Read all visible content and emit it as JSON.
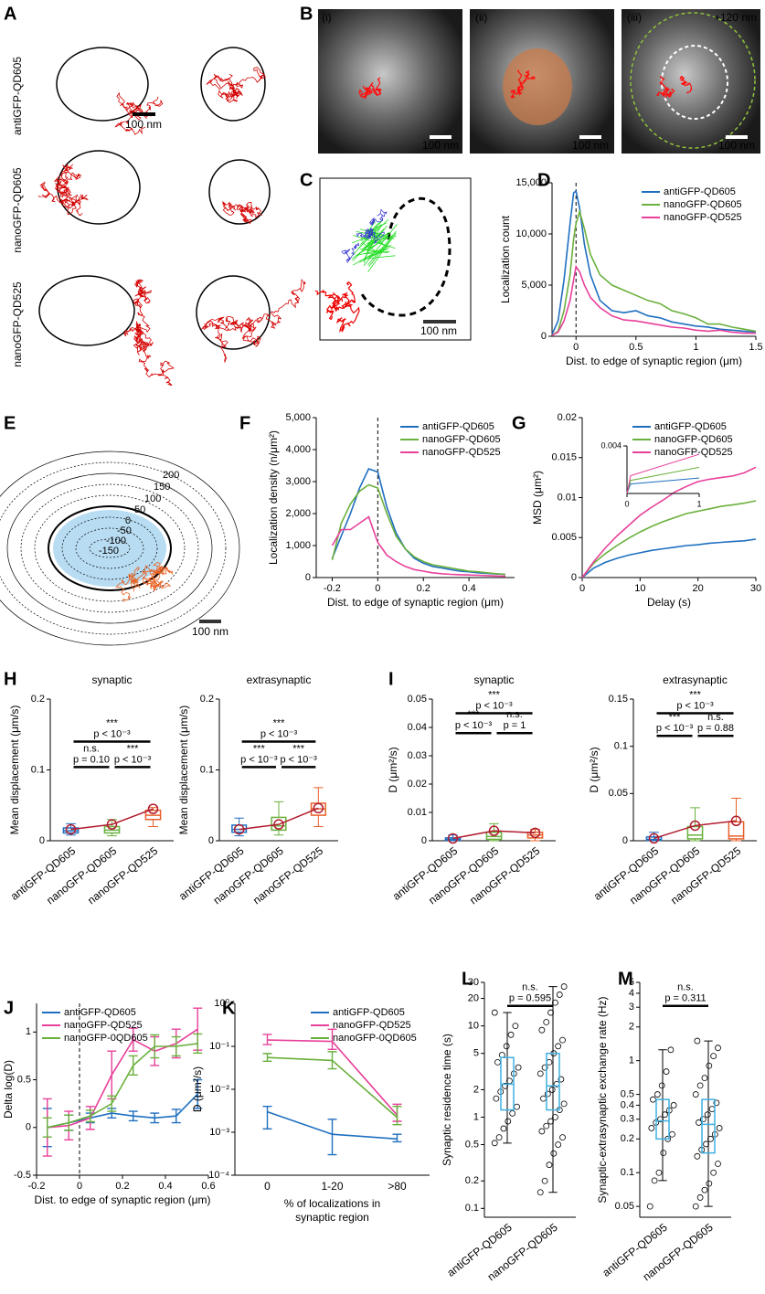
{
  "figure": {
    "letters": [
      "A",
      "B",
      "C",
      "D",
      "E",
      "F",
      "G",
      "H",
      "I",
      "J",
      "K",
      "L",
      "M"
    ],
    "panel_a": {
      "row_labels": [
        "antiGFP-QD605",
        "nanoGFP-QD605",
        "nanoGFP-QD525"
      ],
      "scale_bar": "100 nm"
    },
    "panel_b": {
      "labels": [
        "(i)",
        "(ii)",
        "(iii)"
      ],
      "offset_label": "+120 nm",
      "scale_bar": "100 nm"
    },
    "panel_c": {
      "scale_bar": "100 nm"
    },
    "panel_e": {
      "contour_labels": [
        "200",
        "150",
        "100",
        "50",
        "0",
        "-50",
        "-100",
        "-150"
      ],
      "scale_bar": "100 nm"
    }
  },
  "chart_data": [
    {
      "type": "line",
      "xlabel": "Dist. to edge of synaptic region (μm)",
      "ylabel": "Localization count",
      "x": [
        -0.2,
        -0.15,
        -0.1,
        -0.05,
        -0.02,
        0,
        0.03,
        0.07,
        0.12,
        0.2,
        0.3,
        0.4,
        0.5,
        0.6,
        0.7,
        0.8,
        0.9,
        1.0,
        1.1,
        1.2,
        1.3,
        1.4,
        1.5
      ],
      "series": [
        {
          "name": "antiGFP-QD605",
          "color": "#1f6fc0",
          "values": [
            200,
            1500,
            5500,
            11000,
            14000,
            14200,
            12500,
            9000,
            6000,
            3500,
            2500,
            2300,
            2500,
            2000,
            1800,
            1400,
            1200,
            1000,
            900,
            700,
            600,
            500,
            400
          ]
        },
        {
          "name": "nanoGFP-QD605",
          "color": "#6ab03c",
          "values": [
            100,
            500,
            2500,
            6000,
            9500,
            11000,
            12200,
            10500,
            8000,
            6000,
            5000,
            4500,
            4000,
            3500,
            3200,
            2500,
            2200,
            1800,
            1200,
            1200,
            900,
            700,
            500
          ]
        },
        {
          "name": "nanoGFP-QD525",
          "color": "#e8409a",
          "values": [
            100,
            400,
            1500,
            3500,
            5500,
            6800,
            6300,
            5000,
            3800,
            2800,
            2000,
            1600,
            1500,
            1300,
            1100,
            900,
            800,
            600,
            500,
            600,
            400,
            300,
            300
          ]
        }
      ],
      "xlim": [
        -0.2,
        1.5
      ],
      "xticks": [
        0,
        0.5,
        1,
        1.5
      ],
      "ylim": [
        0,
        15000
      ],
      "yticks": [
        0,
        {
          "value": 5000,
          "label": "5,000"
        },
        {
          "value": 10000,
          "label": "10,000"
        },
        {
          "value": 15000,
          "label": "15,000"
        }
      ],
      "vline": 0,
      "legend": "upper right"
    },
    {
      "type": "line",
      "xlabel": "Dist. to edge of synaptic region (μm)",
      "ylabel": "Localization density (n/μm²)",
      "x": [
        -0.2,
        -0.16,
        -0.12,
        -0.08,
        -0.04,
        0,
        0.04,
        0.08,
        0.12,
        0.16,
        0.2,
        0.24,
        0.28,
        0.32,
        0.36,
        0.4,
        0.44,
        0.48,
        0.52,
        0.56
      ],
      "series": [
        {
          "name": "antiGFP-QD605",
          "color": "#1f6fc0",
          "values": [
            600,
            1300,
            2000,
            2800,
            3400,
            3300,
            2200,
            1400,
            900,
            600,
            450,
            350,
            300,
            250,
            200,
            180,
            150,
            130,
            110,
            100
          ]
        },
        {
          "name": "nanoGFP-QD605",
          "color": "#6ab03c",
          "values": [
            550,
            1700,
            2300,
            2700,
            2900,
            2800,
            2000,
            1300,
            900,
            650,
            500,
            400,
            350,
            300,
            250,
            200,
            180,
            150,
            120,
            100
          ]
        },
        {
          "name": "nanoGFP-QD525",
          "color": "#e8409a",
          "values": [
            1000,
            1500,
            1500,
            1700,
            1900,
            1100,
            700,
            500,
            350,
            250,
            200,
            150,
            120,
            100,
            90,
            80,
            70,
            60,
            50,
            40
          ]
        }
      ],
      "xlim": [
        -0.27,
        0.6
      ],
      "xticks": [
        -0.2,
        0,
        0.2,
        0.4
      ],
      "ylim": [
        0,
        5000
      ],
      "yticks": [
        0,
        {
          "value": 1000,
          "label": "1,000"
        },
        {
          "value": 2000,
          "label": "2,000"
        },
        {
          "value": 3000,
          "label": "3,000"
        },
        {
          "value": 4000,
          "label": "4,000"
        },
        {
          "value": 5000,
          "label": "5,000"
        }
      ],
      "vline": 0,
      "legend": "upper right"
    },
    {
      "type": "line",
      "xlabel": "Delay (s)",
      "ylabel": "MSD (μm²)",
      "x": [
        0,
        2,
        4,
        6,
        8,
        10,
        12,
        14,
        16,
        18,
        20,
        22,
        24,
        26,
        28,
        30
      ],
      "series": [
        {
          "name": "antiGFP-QD605",
          "color": "#1f6fc0",
          "values": [
            0,
            0.0012,
            0.0019,
            0.0024,
            0.0028,
            0.0031,
            0.0034,
            0.0036,
            0.0038,
            0.004,
            0.0041,
            0.0043,
            0.0044,
            0.0045,
            0.0046,
            0.0048
          ]
        },
        {
          "name": "nanoGFP-QD605",
          "color": "#6ab03c",
          "values": [
            0,
            0.0018,
            0.003,
            0.004,
            0.0049,
            0.0057,
            0.0064,
            0.007,
            0.0075,
            0.008,
            0.0083,
            0.0086,
            0.0089,
            0.0091,
            0.0093,
            0.0096
          ]
        },
        {
          "name": "nanoGFP-QD525",
          "color": "#e8409a",
          "values": [
            0,
            0.002,
            0.0037,
            0.0052,
            0.0065,
            0.0078,
            0.0088,
            0.0097,
            0.0107,
            0.0114,
            0.012,
            0.0123,
            0.0125,
            0.0127,
            0.0131,
            0.0138
          ]
        }
      ],
      "xlim": [
        0,
        30
      ],
      "xticks": [
        0,
        10,
        20,
        30
      ],
      "ylim": [
        0,
        0.02
      ],
      "yticks": [
        0,
        0.005,
        0.01,
        0.015,
        0.02
      ],
      "legend": "upper right"
    },
    {
      "type": "line",
      "x": [
        0,
        0.05,
        1
      ],
      "series": [
        {
          "color": "#1f6fc0",
          "values": [
            0,
            0.0008,
            0.0013
          ]
        },
        {
          "color": "#6ab03c",
          "values": [
            0,
            0.0011,
            0.0022
          ]
        },
        {
          "color": "#e8409a",
          "values": [
            0,
            0.0015,
            0.0033
          ]
        }
      ],
      "xlim": [
        0,
        1
      ],
      "xticks": [
        0,
        1
      ],
      "ylim": [
        0,
        0.004
      ],
      "yticks": [
        0.004
      ]
    },
    {
      "type": "box",
      "title": "synaptic",
      "ylabel": "Mean displacement (μm/s)",
      "categories": [
        "antiGFP-QD605",
        "nanoGFP-QD605",
        "nanoGFP-QD525"
      ],
      "colors": [
        "#1f6fc0",
        "#6ab03c",
        "#e8602a"
      ],
      "mean_color": "#b01c2e",
      "whisker_low": [
        0.008,
        0.007,
        0.02
      ],
      "q1": [
        0.011,
        0.011,
        0.03
      ],
      "median": [
        0.014,
        0.015,
        0.036
      ],
      "q3": [
        0.018,
        0.02,
        0.043
      ],
      "whisker_high": [
        0.024,
        0.03,
        0.047
      ],
      "mean": [
        0.016,
        0.023,
        0.045
      ],
      "ylim": [
        0,
        0.2
      ],
      "yticks": [
        0,
        0.1,
        0.2
      ],
      "comparisons": [
        {
          "stars": "n.s.",
          "label": "p = 0.10"
        },
        {
          "stars": "***",
          "label": "p < 10⁻³"
        },
        {
          "stars": "***",
          "label": "p < 10⁻³"
        }
      ]
    },
    {
      "type": "box",
      "title": "extrasynaptic",
      "ylabel": "Mean displacement (μm/s)",
      "categories": [
        "antiGFP-QD605",
        "nanoGFP-QD605",
        "nanoGFP-QD525"
      ],
      "colors": [
        "#1f6fc0",
        "#6ab03c",
        "#e8602a"
      ],
      "mean_color": "#b01c2e",
      "whisker_low": [
        0.007,
        0.008,
        0.02
      ],
      "q1": [
        0.012,
        0.015,
        0.036
      ],
      "median": [
        0.016,
        0.021,
        0.045
      ],
      "q3": [
        0.022,
        0.033,
        0.053
      ],
      "whisker_high": [
        0.032,
        0.055,
        0.075
      ],
      "mean": [
        0.016,
        0.023,
        0.046
      ],
      "ylim": [
        0,
        0.2
      ],
      "yticks": [
        0,
        0.1,
        0.2
      ],
      "comparisons": [
        {
          "stars": "***",
          "label": "p < 10⁻³"
        },
        {
          "stars": "***",
          "label": "p < 10⁻³"
        },
        {
          "stars": "***",
          "label": "p < 10⁻³"
        }
      ]
    },
    {
      "type": "box",
      "title": "synaptic",
      "ylabel": "D (μm²/s)",
      "categories": [
        "antiGFP-QD605",
        "nanoGFP-QD605",
        "nanoGFP-QD525"
      ],
      "colors": [
        "#1f6fc0",
        "#6ab03c",
        "#e8602a"
      ],
      "mean_color": "#b01c2e",
      "whisker_low": [
        0,
        0,
        0
      ],
      "q1": [
        0.0002,
        0.0005,
        0.001
      ],
      "median": [
        0.0005,
        0.0015,
        0.002
      ],
      "q3": [
        0.001,
        0.003,
        0.003
      ],
      "whisker_high": [
        0.002,
        0.006,
        0.004
      ],
      "mean": [
        0.0008,
        0.0035,
        0.0028
      ],
      "ylim": [
        0,
        0.05
      ],
      "yticks": [
        0,
        0.01,
        0.02,
        0.03,
        0.04,
        0.05
      ],
      "comparisons": [
        {
          "stars": "***",
          "label": "p < 10⁻³"
        },
        {
          "stars": "n.s.",
          "label": "p = 1"
        },
        {
          "stars": "***",
          "label": "p < 10⁻³"
        }
      ]
    },
    {
      "type": "box",
      "title": "extrasynaptic",
      "ylabel": "D (μm²/s)",
      "categories": [
        "antiGFP-QD605",
        "nanoGFP-QD605",
        "nanoGFP-QD525"
      ],
      "colors": [
        "#1f6fc0",
        "#6ab03c",
        "#e8602a"
      ],
      "mean_color": "#b01c2e",
      "whisker_low": [
        0,
        0,
        0
      ],
      "q1": [
        0.0005,
        0.002,
        0.002
      ],
      "median": [
        0.0015,
        0.006,
        0.005
      ],
      "q3": [
        0.004,
        0.015,
        0.02
      ],
      "whisker_high": [
        0.009,
        0.035,
        0.045
      ],
      "mean": [
        0.0025,
        0.016,
        0.021
      ],
      "ylim": [
        0,
        0.15
      ],
      "yticks": [
        0,
        0.05,
        0.1,
        0.15
      ],
      "comparisons": [
        {
          "stars": "***",
          "label": "p < 10⁻³"
        },
        {
          "stars": "n.s.",
          "label": "p = 0.88"
        },
        {
          "stars": "***",
          "label": "p < 10⁻³"
        }
      ]
    },
    {
      "type": "line",
      "xlabel": "Dist. to edge of synaptic region (μm)",
      "ylabel": "Delta log(D)",
      "x": [
        -0.15,
        -0.05,
        0.05,
        0.15,
        0.25,
        0.35,
        0.45,
        0.55
      ],
      "series": [
        {
          "name": "antiGFP-QD605",
          "color": "#1f6fc0",
          "values": [
            0,
            0.05,
            0.1,
            0.15,
            0.12,
            0.1,
            0.12,
            0.35
          ],
          "errors": [
            0.2,
            0.08,
            0.05,
            0.05,
            0.05,
            0.05,
            0.07,
            0.15
          ]
        },
        {
          "name": "nanoGFP-QD525",
          "color": "#e8409a",
          "values": [
            0,
            0.02,
            0.1,
            0.55,
            0.92,
            0.8,
            0.88,
            1.03
          ],
          "errors": [
            0.3,
            0.15,
            0.12,
            0.25,
            0.12,
            0.15,
            0.15,
            0.22
          ]
        },
        {
          "name": "nanoGFP-0QD605",
          "color": "#6ab03c",
          "values": [
            0,
            0.05,
            0.12,
            0.25,
            0.65,
            0.85,
            0.85,
            0.88
          ],
          "errors": [
            0.1,
            0.08,
            0.06,
            0.08,
            0.1,
            0.12,
            0.1,
            0.1
          ]
        }
      ],
      "xlim": [
        -0.2,
        0.6
      ],
      "xticks": [
        -0.2,
        0,
        0.2,
        0.4,
        0.6
      ],
      "ylim": [
        -0.5,
        1.3
      ],
      "yticks": [
        -0.5,
        0,
        0.5,
        1
      ],
      "vline": 0,
      "legend": "upper left"
    },
    {
      "type": "line",
      "xlabel": [
        "% of localizations in",
        "synaptic region"
      ],
      "ylabel": "D (μm²/s)",
      "categories": [
        "0",
        "1-20",
        ">80"
      ],
      "log_y": true,
      "series": [
        {
          "name": "antiGFP-QD605",
          "color": "#1f6fc0",
          "values": [
            0.003,
            0.0009,
            0.0007
          ],
          "error_low": [
            0.0012,
            0.0003,
            0.0006
          ],
          "error_high": [
            0.004,
            0.002,
            0.0009
          ]
        },
        {
          "name": "nanoGFP-QD525",
          "color": "#e8409a",
          "values": [
            0.14,
            0.13,
            0.0025
          ],
          "error_low": [
            0.11,
            0.085,
            0.0018
          ],
          "error_high": [
            0.19,
            0.25,
            0.0045
          ]
        },
        {
          "name": "nanoGFP-0QD605",
          "color": "#6ab03c",
          "values": [
            0.055,
            0.047,
            0.0022
          ],
          "error_low": [
            0.045,
            0.03,
            0.0015
          ],
          "error_high": [
            0.068,
            0.075,
            0.004
          ]
        }
      ],
      "ylim": [
        0.0001,
        1
      ],
      "yticks": [
        {
          "value": 0.0001,
          "label": "10⁻⁴"
        },
        {
          "value": 0.001,
          "label": "10⁻³"
        },
        {
          "value": 0.01,
          "label": "10⁻²"
        },
        {
          "value": 0.1,
          "label": "10⁻¹"
        },
        {
          "value": 1,
          "label": "10⁰"
        }
      ],
      "legend": "upper right"
    },
    {
      "type": "box",
      "ylabel": "Synaptic residence time (s)",
      "log_y": true,
      "categories": [
        "antiGFP-QD605",
        "nanoGFP-QD605"
      ],
      "colors": [
        "#3fb0e0",
        "#3fb0e0"
      ],
      "whisker_low": [
        0.52,
        0.15
      ],
      "q1": [
        1.2,
        1.2
      ],
      "median": [
        2.3,
        2.2
      ],
      "q3": [
        4.5,
        5
      ],
      "whisker_high": [
        14,
        27
      ],
      "points": [
        [
          0.52,
          0.6,
          0.75,
          0.9,
          1.1,
          1.3,
          1.6,
          1.9,
          2.2,
          2.5,
          3,
          3.5,
          4,
          4.8,
          6,
          8,
          10,
          14
        ],
        [
          0.15,
          0.2,
          0.3,
          0.4,
          0.5,
          0.6,
          0.7,
          0.8,
          0.9,
          1,
          1.2,
          1.4,
          1.6,
          1.8,
          2,
          2.3,
          2.6,
          3,
          3.5,
          4,
          5,
          6,
          7,
          9,
          11,
          14,
          18,
          22,
          27
        ]
      ],
      "ylim": [
        0.08,
        30
      ],
      "yticks": [
        0.1,
        0.2,
        0.5,
        1,
        2,
        5,
        10,
        20,
        30
      ],
      "comparisons": [
        {
          "stars": "n.s.",
          "label": "p = 0.595"
        }
      ]
    },
    {
      "type": "box",
      "ylabel": "Synaptic-extrasynaptic exchange rate (Hz)",
      "log_y": true,
      "categories": [
        "antiGFP-QD605",
        "nanoGFP-QD605"
      ],
      "colors": [
        "#3fb0e0",
        "#3fb0e0"
      ],
      "whisker_low": [
        0.085,
        0.05
      ],
      "q1": [
        0.2,
        0.15
      ],
      "median": [
        0.29,
        0.27
      ],
      "q3": [
        0.45,
        0.45
      ],
      "whisker_high": [
        1.25,
        1.5
      ],
      "points": [
        [
          0.05,
          0.085,
          0.1,
          0.15,
          0.2,
          0.22,
          0.25,
          0.28,
          0.3,
          0.33,
          0.36,
          0.4,
          0.45,
          0.5,
          0.6,
          0.8,
          1.25
        ],
        [
          0.05,
          0.06,
          0.07,
          0.08,
          0.1,
          0.12,
          0.14,
          0.16,
          0.18,
          0.2,
          0.22,
          0.25,
          0.28,
          0.3,
          0.33,
          0.37,
          0.42,
          0.5,
          0.6,
          0.7,
          0.9,
          1.1,
          1.3,
          1.5
        ]
      ],
      "ylim": [
        0.04,
        5
      ],
      "yticks": [
        0.05,
        0.1,
        0.2,
        0.3,
        0.4,
        0.5,
        1,
        2,
        3,
        4,
        5
      ],
      "comparisons": [
        {
          "stars": "n.s.",
          "label": "p = 0.311"
        }
      ]
    }
  ]
}
